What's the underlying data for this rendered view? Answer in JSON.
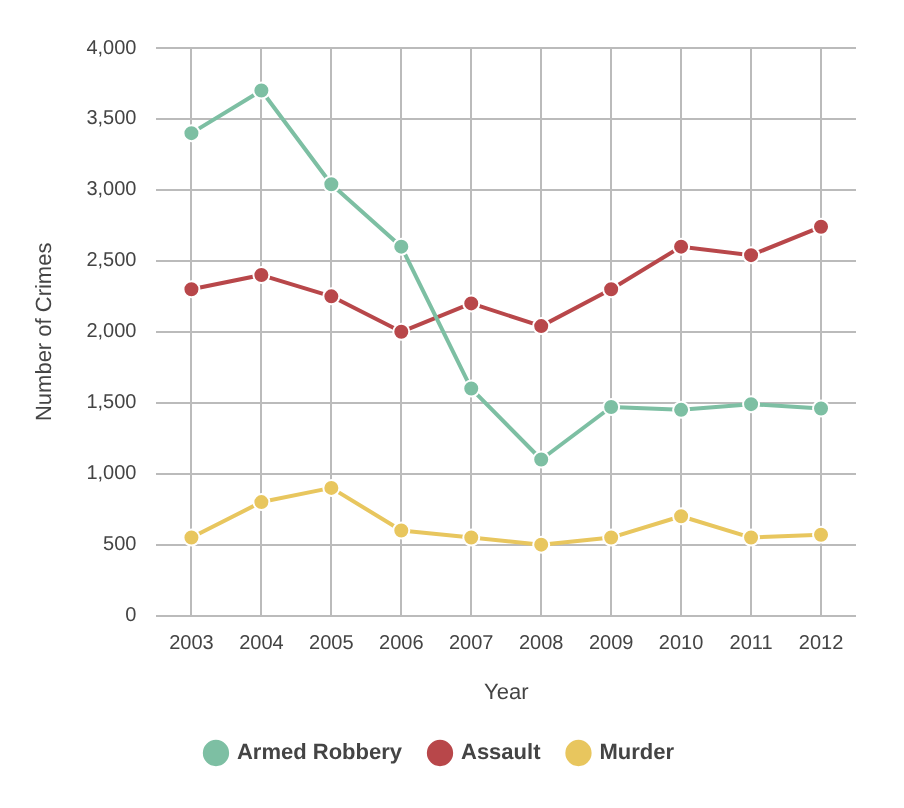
{
  "chart_data": {
    "type": "line",
    "xlabel": "Year",
    "ylabel": "Number of Crimes",
    "categories": [
      "2003",
      "2004",
      "2005",
      "2006",
      "2007",
      "2008",
      "2009",
      "2010",
      "2011",
      "2012"
    ],
    "series": [
      {
        "name": "Armed Robbery",
        "color": "#7dbfa3",
        "values": [
          3400,
          3700,
          3040,
          2600,
          1600,
          1100,
          1470,
          1450,
          1490,
          1460
        ]
      },
      {
        "name": "Assault",
        "color": "#b8474a",
        "values": [
          2300,
          2400,
          2250,
          2000,
          2200,
          2040,
          2300,
          2600,
          2540,
          2740
        ]
      },
      {
        "name": "Murder",
        "color": "#e8c65e",
        "values": [
          550,
          800,
          900,
          600,
          550,
          500,
          550,
          700,
          550,
          570
        ]
      }
    ],
    "ylim": [
      0,
      4000
    ],
    "yticks": [
      0,
      500,
      {
        "value": 1000,
        "label": "1,000"
      },
      {
        "value": 1500,
        "label": "1,500"
      },
      {
        "value": 2000,
        "label": "2,000"
      },
      {
        "value": 2500,
        "label": "2,500"
      },
      {
        "value": 3000,
        "label": "3,000"
      },
      {
        "value": 3500,
        "label": "3,500"
      },
      {
        "value": 4000,
        "label": "4,000"
      }
    ],
    "grid": true,
    "legend": "bottom",
    "marker": "circle",
    "line_style": "solid"
  }
}
